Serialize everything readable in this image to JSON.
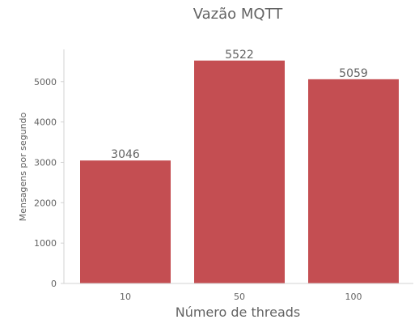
{
  "chart_data": {
    "type": "bar",
    "title": "Vazão MQTT",
    "xlabel": "Número de threads",
    "ylabel": "Mensagens por segundo",
    "categories": [
      "10",
      "50",
      "100"
    ],
    "values": [
      3046,
      5522,
      5059
    ],
    "data_labels": [
      "3046",
      "5522",
      "5059"
    ],
    "yticks": [
      0,
      1000,
      2000,
      3000,
      4000,
      5000
    ],
    "ylim": [
      0,
      5798
    ],
    "grid": false,
    "bar_color": "#c44e52",
    "text_color": "#636363",
    "axis_color": "#d3d3d3"
  }
}
